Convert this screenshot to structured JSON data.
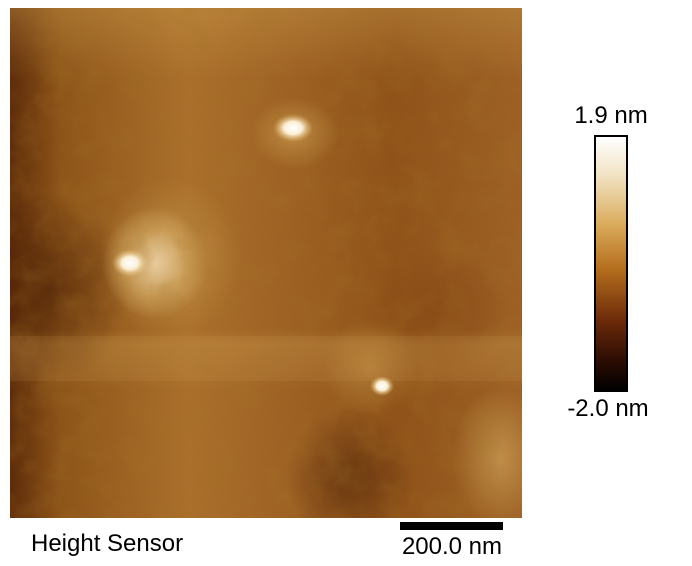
{
  "image": {
    "channel_label": "Height Sensor",
    "scale_bar_label": "200.0 nm"
  },
  "colorbar": {
    "max_label": "1.9 nm",
    "min_label": "-2.0 nm",
    "colors": [
      "#ffffff",
      "#d9aa5a",
      "#b56f1e",
      "#6e2c0a",
      "#000000"
    ]
  }
}
